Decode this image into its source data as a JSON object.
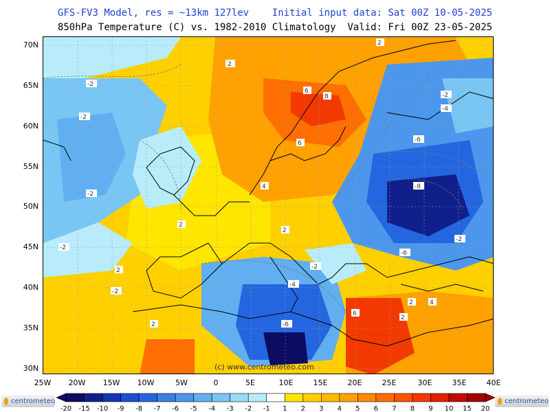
{
  "title_line1_model": "GFS-FV3 Model, res = ~13km 127lev",
  "title_line1_init": "Initial input data: Sat 00Z 10-05-2025",
  "title_line2": "850hPa Temperature (C) vs. 1982-2010 Climatology  Valid: Fri 00Z 23-05-2025",
  "lat_labels": [
    "70N",
    "65N",
    "60N",
    "55N",
    "50N",
    "45N",
    "40N",
    "35N",
    "30N"
  ],
  "lon_labels": [
    "25W",
    "20W",
    "15W",
    "10W",
    "5W",
    "0",
    "5E",
    "10E",
    "15E",
    "20E",
    "25E",
    "30E",
    "35E",
    "40E"
  ],
  "credit": "(c) www.centrometeo.com",
  "logo_text": "centrometeo",
  "colorbar": {
    "ticks": [
      "-20",
      "-15",
      "-10",
      "-9",
      "-8",
      "-7",
      "-6",
      "-5",
      "-4",
      "-3",
      "-2",
      "-1",
      "1",
      "2",
      "3",
      "4",
      "5",
      "6",
      "7",
      "8",
      "9",
      "10",
      "15",
      "20"
    ],
    "colors": [
      "#0c0c60",
      "#101f8a",
      "#1534b3",
      "#1a4fd4",
      "#2466e0",
      "#3a7fe6",
      "#4c97ec",
      "#61aff0",
      "#79c6f4",
      "#96dbf7",
      "#b8ecfa",
      "#ffffff",
      "#ffe600",
      "#ffd000",
      "#ffb800",
      "#ffa100",
      "#ff8800",
      "#ff6e00",
      "#ff5400",
      "#f23a00",
      "#e02000",
      "#c40a00",
      "#a30000"
    ]
  },
  "contour_labels": [
    {
      "text": "2"
    },
    {
      "text": "-2"
    },
    {
      "text": "-2"
    },
    {
      "text": "-2"
    },
    {
      "text": "-2"
    },
    {
      "text": "2"
    },
    {
      "text": "2"
    },
    {
      "text": "2"
    },
    {
      "text": "4"
    },
    {
      "text": "2"
    },
    {
      "text": "6"
    },
    {
      "text": "8"
    },
    {
      "text": "6"
    },
    {
      "text": "-2"
    },
    {
      "text": "-4"
    },
    {
      "text": "-6"
    },
    {
      "text": "-8"
    },
    {
      "text": "-6"
    },
    {
      "text": "-2"
    },
    {
      "text": "-2"
    },
    {
      "text": "-4"
    },
    {
      "text": "-6"
    },
    {
      "text": "-2"
    },
    {
      "text": "2"
    },
    {
      "text": "4"
    },
    {
      "text": "6"
    },
    {
      "text": "2"
    },
    {
      "text": "2"
    }
  ]
}
